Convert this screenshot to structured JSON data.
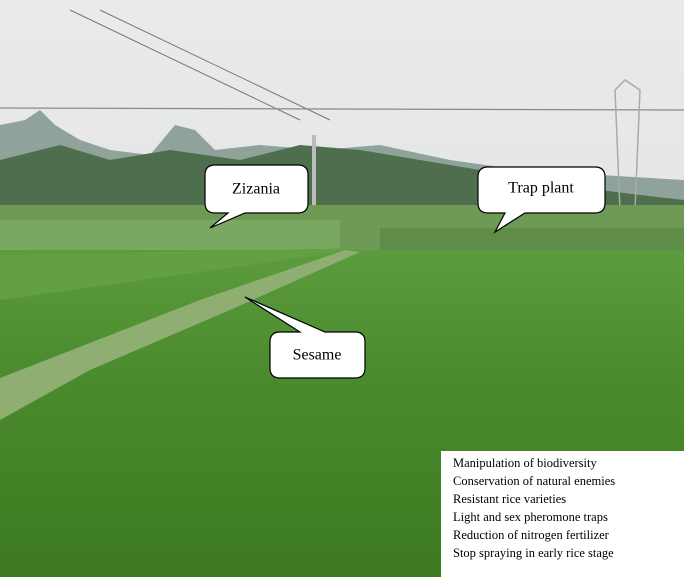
{
  "callouts": {
    "zizania": "Zizania",
    "trap_plant": "Trap plant",
    "sesame": "Sesame"
  },
  "practices": [
    "Manipulation of biodiversity",
    "Conservation of natural enemies",
    "Resistant rice varieties",
    "Light and sex pheromone traps",
    "Reduction of nitrogen fertilizer",
    "Stop spraying in early rice stage"
  ]
}
